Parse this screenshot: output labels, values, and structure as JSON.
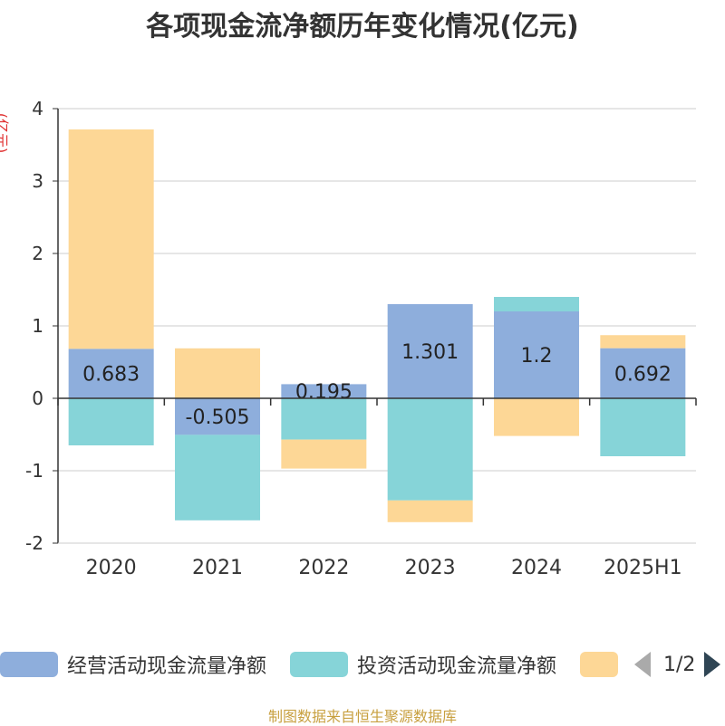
{
  "title": "各项现金流净额历年变化情况(亿元)",
  "unit_label": "(亿元)",
  "source_text": "制图数据来自恒生聚源数据库",
  "legend": {
    "items": [
      {
        "label": "经营活动现金流量净额",
        "color": "#8eaedc"
      },
      {
        "label": "投资活动现金流量净额",
        "color": "#86d4d8"
      },
      {
        "label": "",
        "color": "#fdd796"
      }
    ],
    "page_text": "1/2"
  },
  "chart_data": {
    "type": "bar",
    "stacked": true,
    "categories": [
      "2020",
      "2021",
      "2022",
      "2023",
      "2024",
      "2025H1"
    ],
    "series": [
      {
        "name": "经营活动现金流量净额",
        "color": "#8eaedc",
        "values": [
          0.683,
          -0.505,
          0.195,
          1.301,
          1.2,
          0.692
        ],
        "labels": [
          "0.683",
          "-0.505",
          "0.195",
          "1.301",
          "1.2",
          "0.692"
        ]
      },
      {
        "name": "投资活动现金流量净额",
        "color": "#86d4d8",
        "values": [
          -0.65,
          -1.18,
          -0.57,
          -1.41,
          0.2,
          -0.8
        ]
      },
      {
        "color": "#fdd796",
        "values": [
          3.03,
          0.69,
          -0.4,
          -0.3,
          -0.52,
          0.18
        ]
      }
    ],
    "ylim": [
      -2,
      4
    ],
    "yticks": [
      -2,
      -1,
      0,
      1,
      2,
      3,
      4
    ],
    "grid": true,
    "legend_position": "bottom"
  }
}
